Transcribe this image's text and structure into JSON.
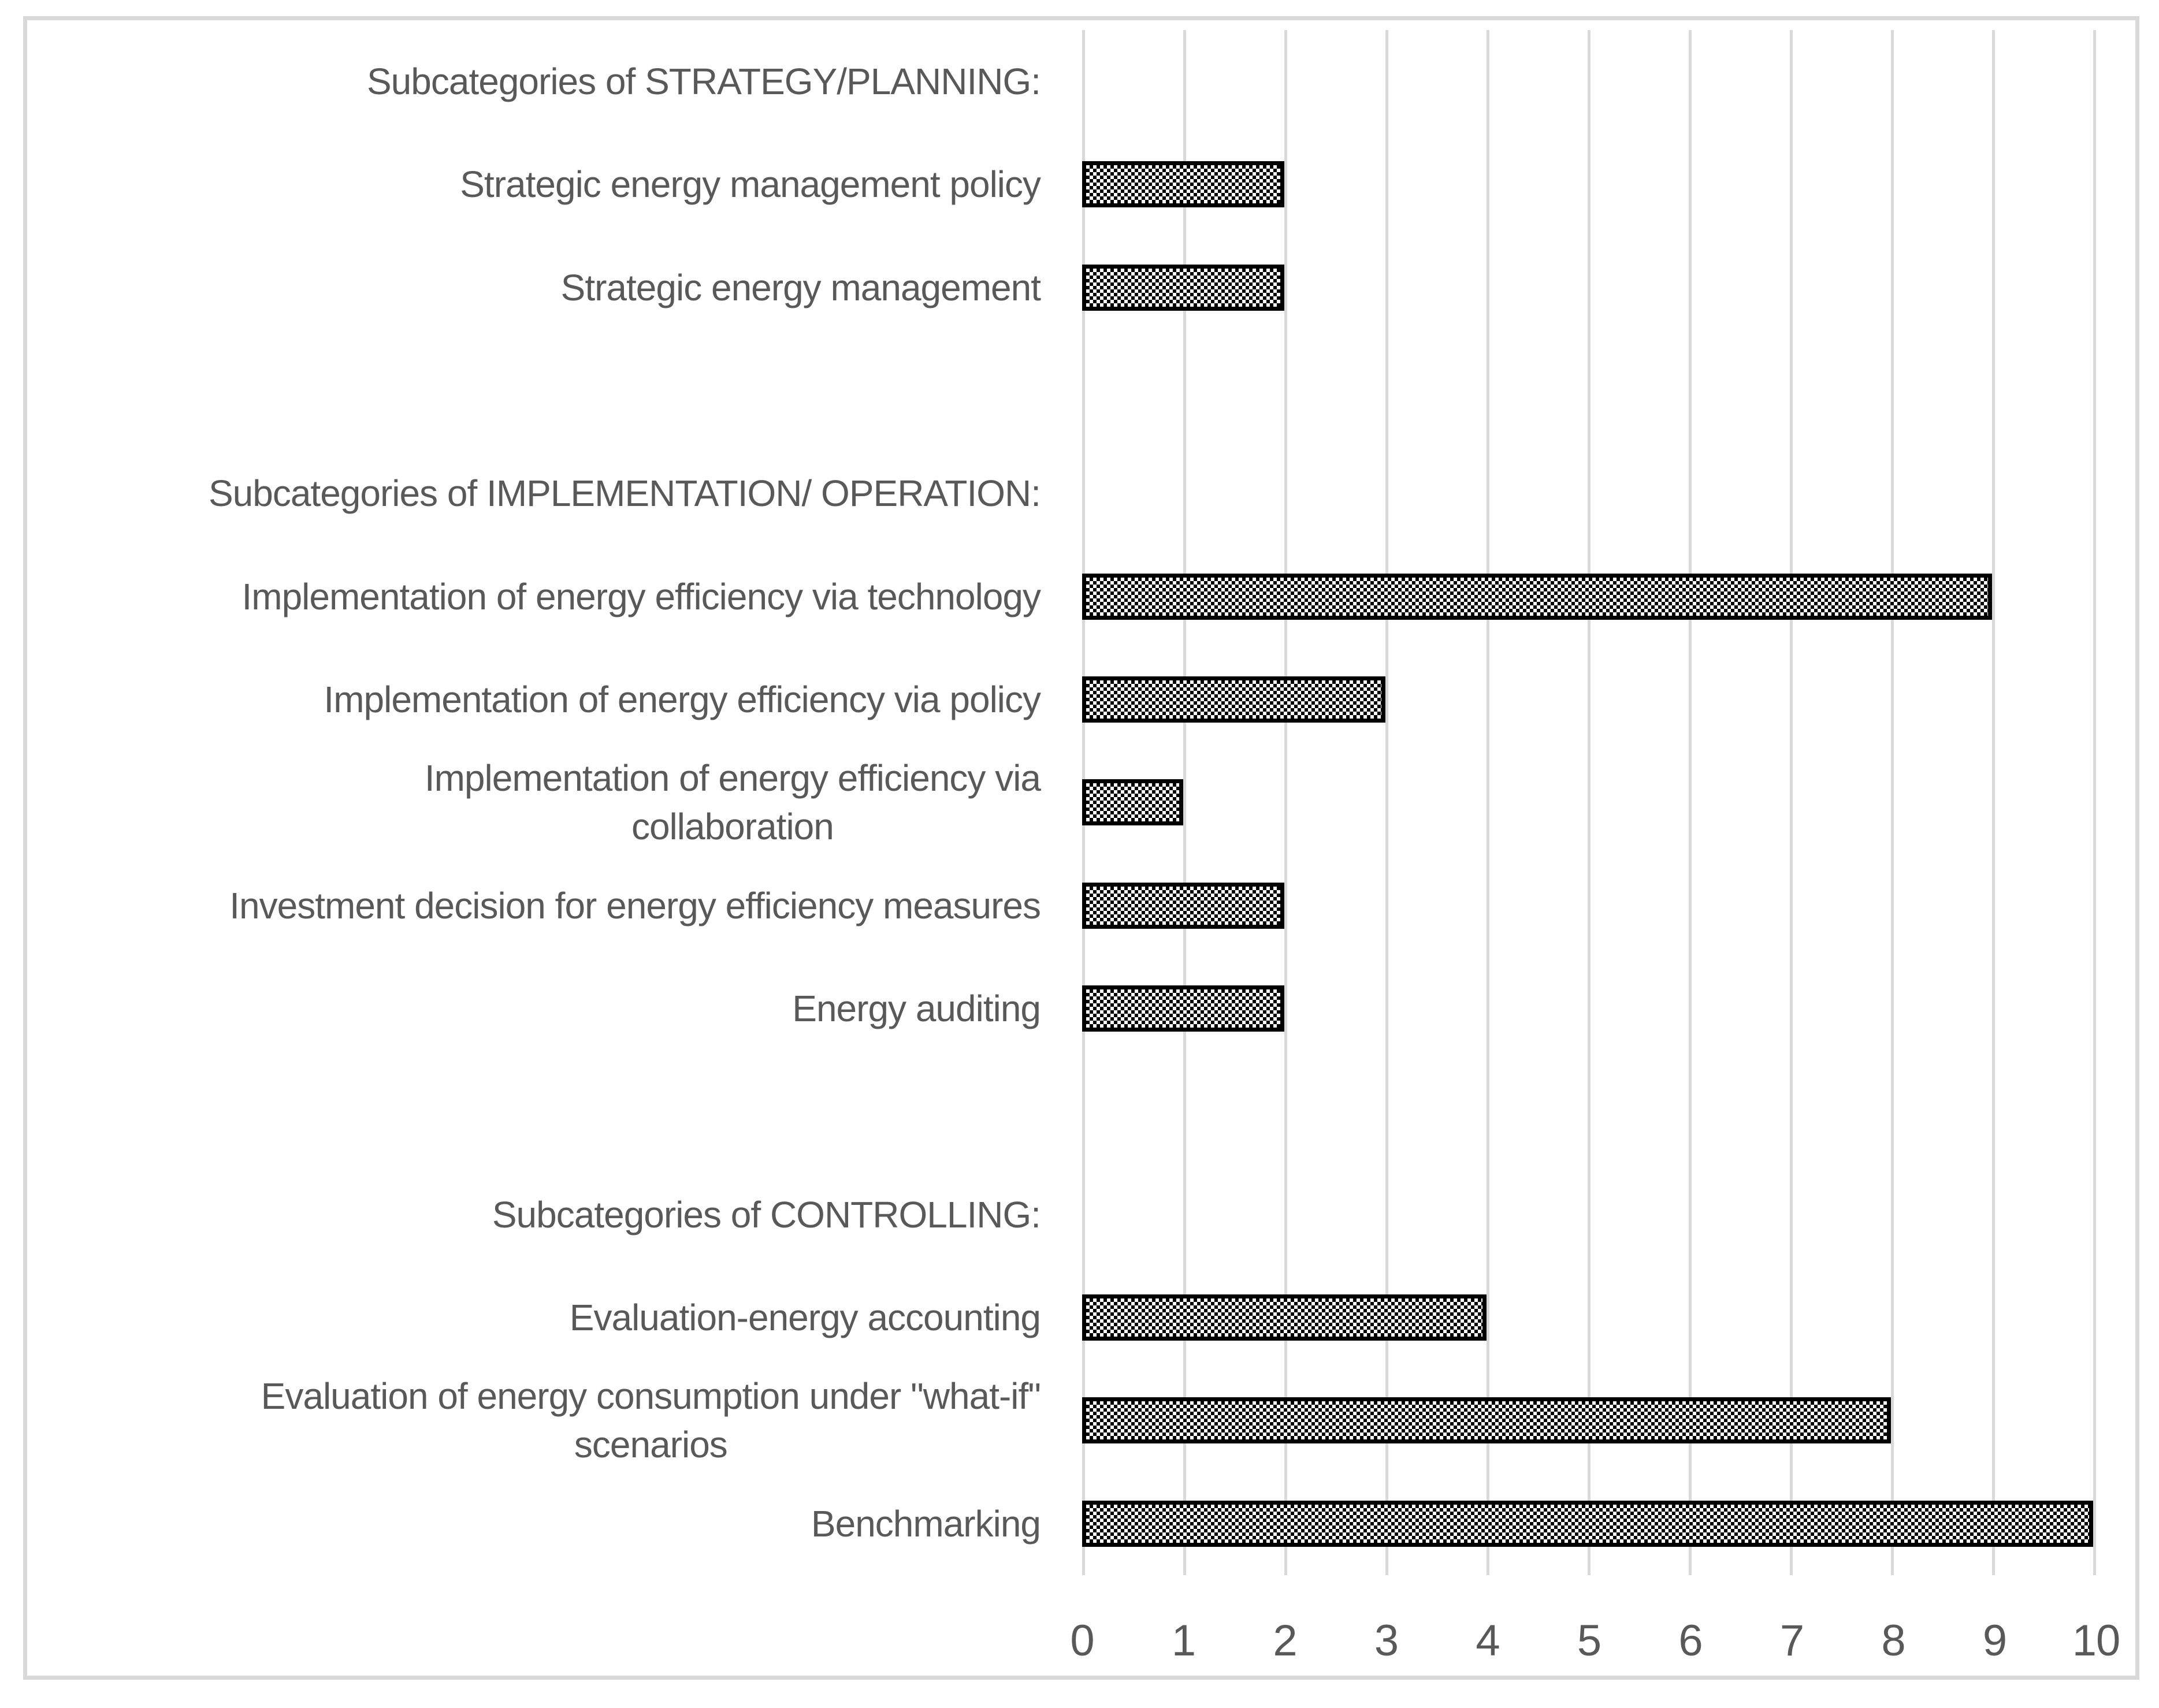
{
  "colors": {
    "text": "#595959",
    "gridline": "#d9d9d9",
    "chart_border": "#d9d9d9",
    "bar_fill": "#000000",
    "bar_pattern_dot": "#ffffff",
    "background": "#ffffff"
  },
  "chart_data": {
    "type": "bar",
    "orientation": "horizontal",
    "title": "",
    "xlabel": "",
    "ylabel": "",
    "xlim": [
      0,
      10
    ],
    "x_ticks": [
      "0",
      "1",
      "2",
      "3",
      "4",
      "5",
      "6",
      "7",
      "8",
      "9",
      "10"
    ],
    "grid": "vertical",
    "legend": "none",
    "bar_style": "black-white checker pattern with solid black border",
    "rows": [
      {
        "kind": "header",
        "label": "Subcategories of STRATEGY/PLANNING:",
        "value": null
      },
      {
        "kind": "bar",
        "label": "Strategic energy management policy",
        "value": 2
      },
      {
        "kind": "bar",
        "label": "Strategic energy management",
        "value": 2
      },
      {
        "kind": "spacer",
        "label": "",
        "value": null
      },
      {
        "kind": "header",
        "label": "Subcategories of IMPLEMENTATION/ OPERATION:",
        "value": null
      },
      {
        "kind": "bar",
        "label": "Implementation of energy efficiency via technology",
        "value": 9
      },
      {
        "kind": "bar",
        "label": "Implementation of energy efficiency via policy",
        "value": 3
      },
      {
        "kind": "bar",
        "label": "Implementation of energy efficiency via\ncollaboration",
        "value": 1
      },
      {
        "kind": "bar",
        "label": "Investment decision for energy efficiency measures",
        "value": 2
      },
      {
        "kind": "bar",
        "label": "Energy auditing",
        "value": 2
      },
      {
        "kind": "spacer",
        "label": "",
        "value": null
      },
      {
        "kind": "header",
        "label": "Subcategories of CONTROLLING:",
        "value": null
      },
      {
        "kind": "bar",
        "label": "Evaluation-energy accounting",
        "value": 4
      },
      {
        "kind": "bar",
        "label": "Evaluation of energy consumption under \"what-if\"\nscenarios",
        "value": 8
      },
      {
        "kind": "bar",
        "label": "Benchmarking",
        "value": 10
      }
    ]
  }
}
